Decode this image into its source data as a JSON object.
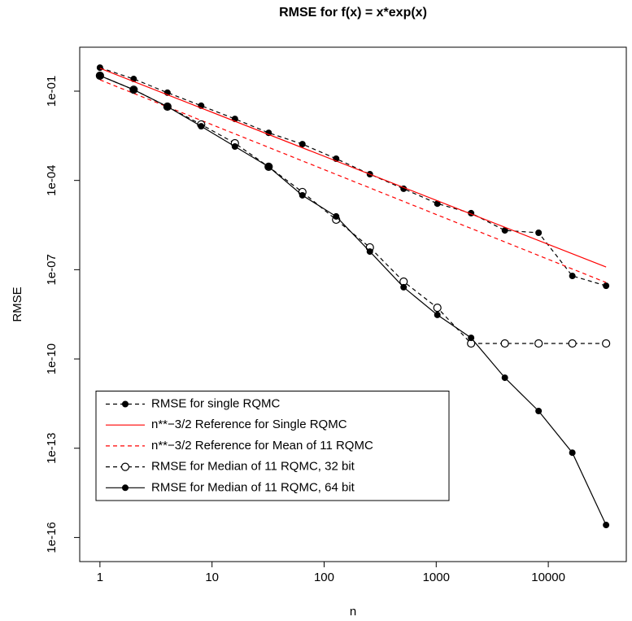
{
  "chart_data": {
    "type": "line",
    "title": "RMSE for f(x) = x*exp(x)",
    "x_label": "n",
    "y_label": "RMSE",
    "xscale": "log",
    "yscale": "log",
    "legend": "bottomleft",
    "xlim": [
      0.66,
      49650
    ],
    "ylim": [
      3.0,
      1.55e-17
    ],
    "xticks": [
      1,
      10,
      100,
      1000,
      10000
    ],
    "yticks": [
      {
        "value": 0.1,
        "label": "1e-01"
      },
      {
        "value": 0.0001,
        "label": "1e-04"
      },
      {
        "value": 1e-07,
        "label": "1e-07"
      },
      {
        "value": 1e-10,
        "label": "1e-10"
      },
      {
        "value": 1e-13,
        "label": "1e-13"
      },
      {
        "value": 1e-16,
        "label": "1e-16"
      }
    ],
    "series": [
      {
        "name": "RMSE for single RQMC",
        "color": "#000000",
        "dash": true,
        "marker": "filled",
        "x": [
          1,
          2,
          4,
          8,
          16,
          32,
          64,
          128,
          256,
          512,
          1024,
          2048,
          4096,
          8192,
          16384,
          32768
        ],
        "values": [
          0.617,
          0.257,
          0.0891,
          0.0324,
          0.0117,
          0.00398,
          0.00166,
          0.000537,
          0.000162,
          5.25e-05,
          1.66e-05,
          7.94e-06,
          2.09e-06,
          1.74e-06,
          6.17e-08,
          2.88e-08
        ]
      },
      {
        "name": "n**−3/2 Reference for Single RQMC",
        "color": "#ff0000",
        "dash": false,
        "marker": "none",
        "x": [
          1,
          32768
        ],
        "values": [
          0.589,
          1.23e-07
        ]
      },
      {
        "name": "n**−3/2 Reference for Mean of 11 RQMC",
        "color": "#ff0000",
        "dash": true,
        "marker": "none",
        "x": [
          1,
          32768
        ],
        "values": [
          0.24,
          3.72e-08
        ]
      },
      {
        "name": "RMSE for Median of 11 RQMC, 32 bit",
        "color": "#000000",
        "dash": true,
        "marker": "open",
        "x": [
          1,
          2,
          4,
          8,
          16,
          32,
          64,
          128,
          256,
          512,
          1024,
          2048,
          4096,
          8192,
          16384,
          32768
        ],
        "values": [
          0.331,
          0.112,
          0.0302,
          0.00759,
          0.00178,
          0.000288,
          4.07e-05,
          4.79e-06,
          5.62e-07,
          3.98e-08,
          5.25e-09,
          3.31e-10,
          3.31e-10,
          3.31e-10,
          3.31e-10,
          3.31e-10
        ]
      },
      {
        "name": "RMSE for Median of 11 RQMC, 64 bit",
        "color": "#000000",
        "dash": false,
        "marker": "filled",
        "x": [
          1,
          2,
          4,
          8,
          16,
          32,
          64,
          128,
          256,
          512,
          1024,
          2048,
          4096,
          8192,
          16384,
          32768
        ],
        "values": [
          0.331,
          0.112,
          0.0302,
          0.00661,
          0.00138,
          0.000288,
          3.16e-05,
          6.17e-06,
          4.07e-07,
          2.57e-08,
          3.02e-09,
          5.13e-10,
          2.34e-11,
          1.78e-12,
          7.08e-14,
          2.63e-16
        ]
      }
    ]
  }
}
